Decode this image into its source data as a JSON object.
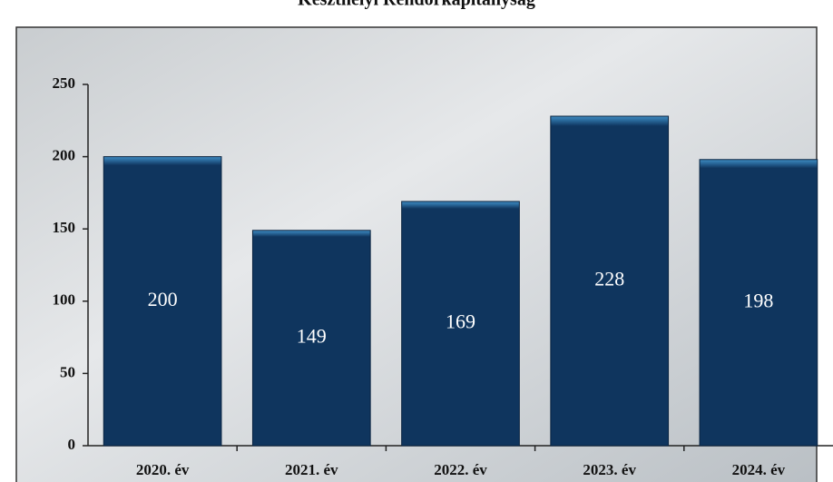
{
  "chart_data": {
    "type": "bar",
    "title": "Keszthelyi Rendőrkapitányság",
    "categories": [
      "2020. év",
      "2021. év",
      "2022. év",
      "2023. év",
      "2024. év"
    ],
    "values": [
      200,
      149,
      169,
      228,
      198
    ],
    "color": "#0f355e",
    "ylim": [
      0,
      250
    ],
    "yticks": [
      0,
      50,
      100,
      150,
      200,
      250
    ]
  }
}
